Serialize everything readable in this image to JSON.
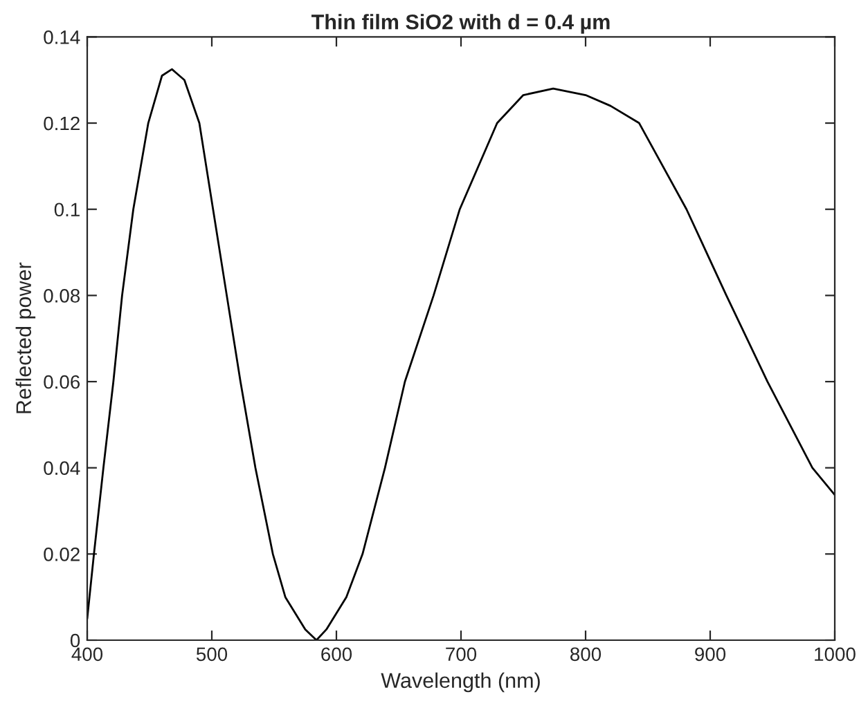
{
  "chart_data": {
    "type": "line",
    "title": "Thin film SiO2 with d = 0.4 µm",
    "xlabel": "Wavelength (nm)",
    "ylabel": "Reflected power",
    "xlim": [
      400,
      1000
    ],
    "xticks": [
      400,
      500,
      600,
      700,
      800,
      900,
      1000
    ],
    "ylim": [
      0,
      0.14
    ],
    "yticks": [
      0,
      0.02,
      0.04,
      0.06,
      0.08,
      0.1,
      0.12,
      0.14
    ],
    "grid": false,
    "legend": false,
    "marker": "none",
    "line_style": "solid",
    "series": [
      {
        "color": "#000000",
        "x": [
          400,
          405.4,
          413,
          421,
          428,
          437,
          449,
          460,
          468,
          478,
          490,
          501,
          512,
          523,
          535,
          549,
          559,
          575,
          584,
          592,
          608,
          621,
          639,
          655,
          678,
          699,
          729,
          750,
          774,
          800,
          820,
          843,
          881,
          913,
          946,
          982,
          1000
        ],
        "values": [
          0.005,
          0.02,
          0.04,
          0.06,
          0.08,
          0.1,
          0.12,
          0.131,
          0.1325,
          0.13,
          0.12,
          0.1,
          0.08,
          0.06,
          0.04,
          0.02,
          0.01,
          0.0025,
          0,
          0.0025,
          0.01,
          0.02,
          0.04,
          0.06,
          0.08,
          0.1,
          0.12,
          0.1265,
          0.128,
          0.1265,
          0.124,
          0.12,
          0.1,
          0.08,
          0.06,
          0.04,
          0.0337
        ]
      }
    ]
  }
}
